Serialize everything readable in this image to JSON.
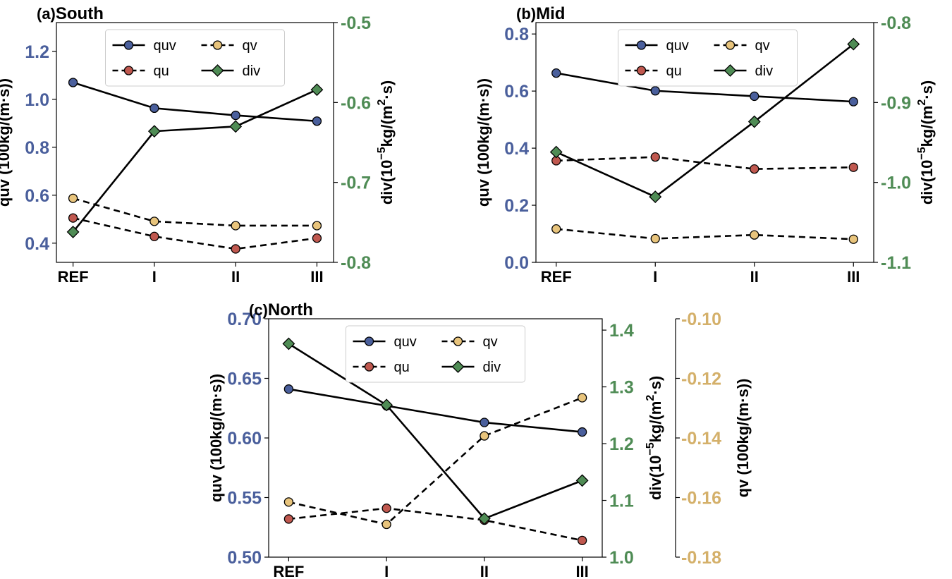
{
  "colors": {
    "quv": "#4a5f9c",
    "qu": "#c0584f",
    "qv": "#e8c47c",
    "div": "#4f8c55",
    "axis_left": "#4a5f9c",
    "axis_right": "#4f8c55",
    "axis_qv": "#d4b06a",
    "line": "#000000"
  },
  "chart_data": [
    {
      "type": "line",
      "panel": "(a)",
      "title": "South",
      "categories": [
        "REF",
        "I",
        "II",
        "III"
      ],
      "ylabel": "quv (100kg/(m·s))",
      "ylim": [
        0.32,
        1.32
      ],
      "yticks": [
        "0.4",
        "0.6",
        "0.8",
        "1.0",
        "1.2"
      ],
      "y2label_main": "div(10",
      "y2label_sup1": "−5",
      "y2label_mid": "kg/(m",
      "y2label_sup2": "2",
      "y2label_end": "·s)",
      "y2lim": [
        -0.8,
        -0.5
      ],
      "y2ticks": [
        "-0.8",
        "-0.7",
        "-0.6",
        "-0.5"
      ],
      "series": [
        {
          "name": "quv",
          "axis": "left",
          "style": "solid",
          "marker": "circle",
          "values": [
            1.07,
            0.963,
            0.933,
            0.909
          ]
        },
        {
          "name": "qu",
          "axis": "left",
          "style": "dashed",
          "marker": "circle",
          "values": [
            0.505,
            0.428,
            0.376,
            0.421
          ]
        },
        {
          "name": "qv",
          "axis": "left",
          "style": "dashed",
          "marker": "circle",
          "values": [
            0.587,
            0.491,
            0.473,
            0.473
          ]
        },
        {
          "name": "div",
          "axis": "right",
          "style": "solid",
          "marker": "diamond",
          "values": [
            -0.762,
            -0.636,
            -0.63,
            -0.584
          ]
        }
      ],
      "legend": {
        "location": "top-center",
        "entries": [
          "quv",
          "qv",
          "qu",
          "div"
        ]
      }
    },
    {
      "type": "line",
      "panel": "(b)",
      "title": "Mid",
      "categories": [
        "REF",
        "I",
        "II",
        "III"
      ],
      "ylabel": "quv (100kg/(m·s))",
      "ylim": [
        0.0,
        0.84
      ],
      "yticks": [
        "0.0",
        "0.2",
        "0.4",
        "0.6",
        "0.8"
      ],
      "y2label_main": "div(10",
      "y2label_sup1": "−5",
      "y2label_mid": "kg/(m",
      "y2label_sup2": "2",
      "y2label_end": "·s)",
      "y2lim": [
        -1.1,
        -0.8
      ],
      "y2ticks": [
        "-1.1",
        "-1.0",
        "-0.9",
        "-0.8"
      ],
      "series": [
        {
          "name": "quv",
          "axis": "left",
          "style": "solid",
          "marker": "circle",
          "values": [
            0.663,
            0.601,
            0.582,
            0.563
          ]
        },
        {
          "name": "qu",
          "axis": "left",
          "style": "dashed",
          "marker": "circle",
          "values": [
            0.356,
            0.369,
            0.327,
            0.333
          ]
        },
        {
          "name": "qv",
          "axis": "left",
          "style": "dashed",
          "marker": "circle",
          "values": [
            0.117,
            0.083,
            0.096,
            0.081
          ]
        },
        {
          "name": "div",
          "axis": "right",
          "style": "solid",
          "marker": "diamond",
          "values": [
            -0.962,
            -1.018,
            -0.924,
            -0.827
          ]
        }
      ],
      "legend": {
        "location": "top-center",
        "entries": [
          "quv",
          "qv",
          "qu",
          "div"
        ]
      }
    },
    {
      "type": "line",
      "panel": "(c)",
      "title": "North",
      "categories": [
        "REF",
        "I",
        "II",
        "III"
      ],
      "ylabel": "quv (100kg/(m·s))",
      "ylim": [
        0.5,
        0.7
      ],
      "yticks": [
        "0.50",
        "0.55",
        "0.60",
        "0.65",
        "0.70"
      ],
      "y2label_main": "div(10",
      "y2label_sup1": "−5",
      "y2label_mid": "kg/(m",
      "y2label_sup2": "2",
      "y2label_end": "·s)",
      "y2lim": [
        1.0,
        1.42
      ],
      "y2ticks": [
        "1.0",
        "1.1",
        "1.2",
        "1.3",
        "1.4"
      ],
      "y3label": "qv (100kg/(m·s))",
      "y3lim": [
        -0.18,
        -0.1
      ],
      "y3ticks": [
        "-0.18",
        "-0.16",
        "-0.14",
        "-0.12",
        "-0.10"
      ],
      "series": [
        {
          "name": "quv",
          "axis": "left",
          "style": "solid",
          "marker": "circle",
          "values": [
            0.641,
            0.627,
            0.613,
            0.605
          ]
        },
        {
          "name": "qu",
          "axis": "left",
          "style": "dashed",
          "marker": "circle",
          "values": [
            0.532,
            0.541,
            0.531,
            0.514
          ]
        },
        {
          "name": "qv",
          "axis": "qv",
          "style": "dashed",
          "marker": "circle",
          "values": [
            -0.1615,
            -0.169,
            -0.1393,
            -0.1265
          ]
        },
        {
          "name": "div",
          "axis": "right",
          "style": "solid",
          "marker": "diamond",
          "values": [
            1.376,
            1.268,
            1.068,
            1.135
          ]
        }
      ],
      "legend": {
        "location": "top-center",
        "entries": [
          "quv",
          "qv",
          "qu",
          "div"
        ]
      }
    }
  ]
}
